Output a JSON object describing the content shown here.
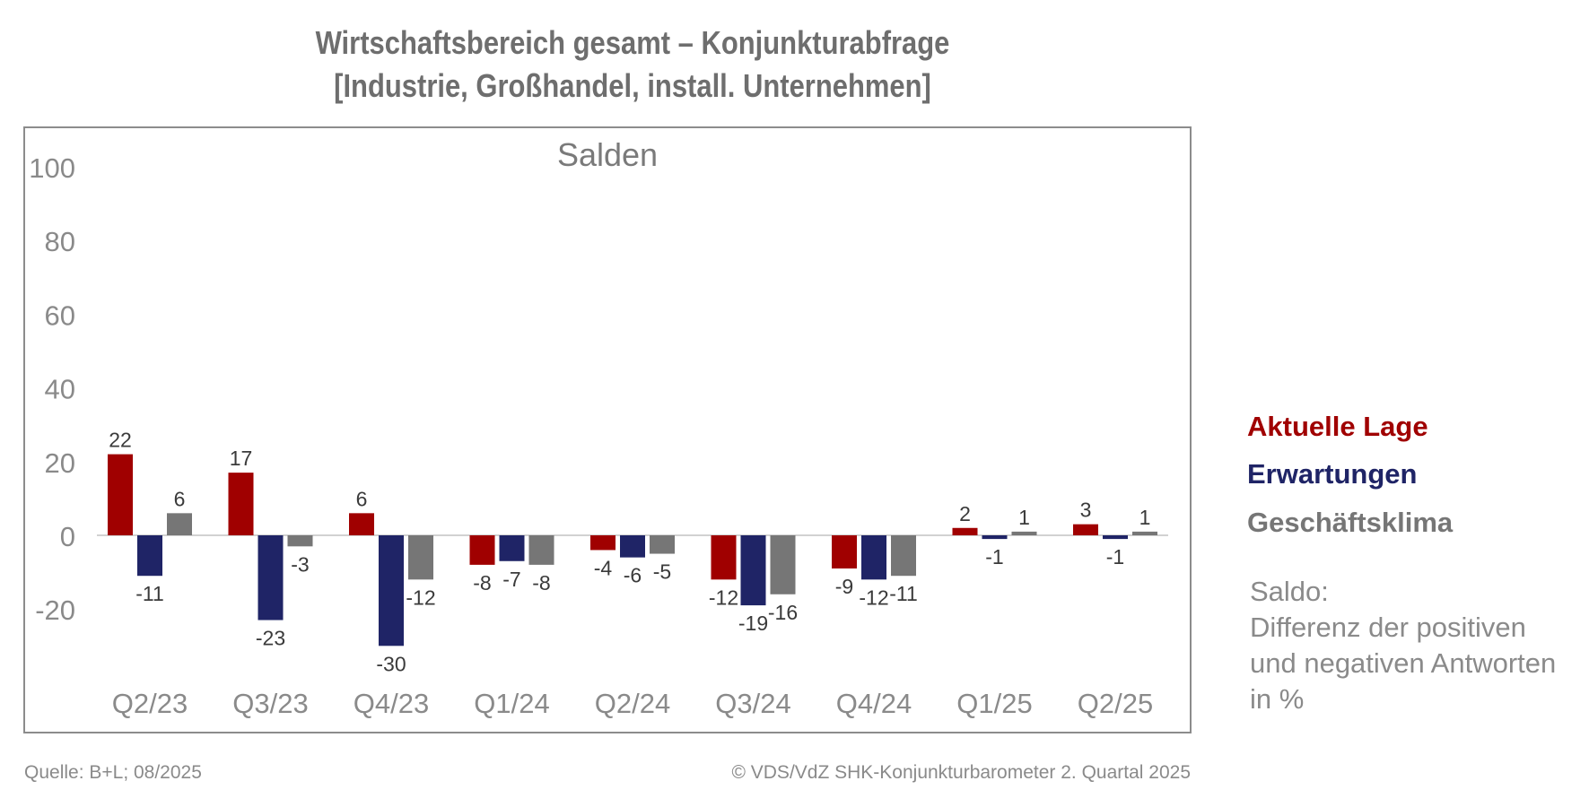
{
  "header": {
    "title_line1": "Wirtschaftsbereich gesamt – Konjunkturabfrage",
    "title_line2": "[Industrie, Großhandel, install. Unternehmen]"
  },
  "chart_data": {
    "type": "bar",
    "subtitle": "Salden",
    "categories": [
      "Q2/23",
      "Q3/23",
      "Q4/23",
      "Q1/24",
      "Q2/24",
      "Q3/24",
      "Q4/24",
      "Q1/25",
      "Q2/25"
    ],
    "series": [
      {
        "name": "Aktuelle Lage",
        "color": "#a00000",
        "values": [
          22,
          17,
          6,
          -8,
          -4,
          -12,
          -9,
          2,
          3
        ]
      },
      {
        "name": "Erwartungen",
        "color": "#1f2466",
        "values": [
          -11,
          -23,
          -30,
          -7,
          -6,
          -19,
          -12,
          -1,
          -1
        ]
      },
      {
        "name": "Geschäftsklima",
        "color": "#767676",
        "values": [
          6,
          -3,
          -12,
          -8,
          -5,
          -16,
          -11,
          1,
          1
        ]
      }
    ],
    "ylim": [
      -20,
      100
    ],
    "yticks": [
      -20,
      0,
      20,
      40,
      60,
      80,
      100
    ],
    "legend_position": "right",
    "grid": false
  },
  "note": {
    "line1": "Saldo:",
    "line2": "Differenz der positiven",
    "line3": "und negativen Antworten",
    "line4": "in %"
  },
  "footer": {
    "source": "Quelle: B+L; 08/2025",
    "copyright": "© VDS/VdZ SHK-Konjunkturbarometer 2. Quartal 2025"
  }
}
